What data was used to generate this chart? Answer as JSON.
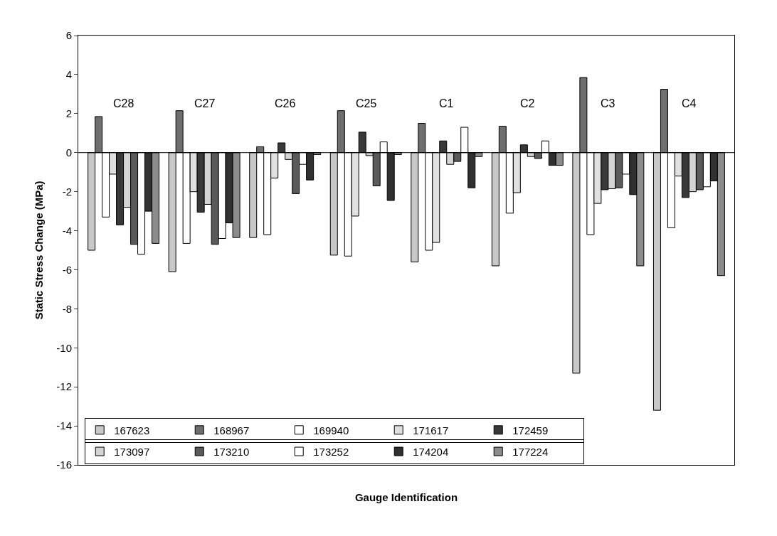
{
  "chart_data": {
    "type": "bar",
    "xlabel": "Gauge Identification",
    "ylabel": "Static Stress Change (MPa)",
    "categories": [
      "C28",
      "C27",
      "C26",
      "C25",
      "C1",
      "C2",
      "C3",
      "C4"
    ],
    "ylim": [
      -16,
      6
    ],
    "yticks": [
      -16,
      -14,
      -12,
      -10,
      -8,
      -6,
      -4,
      -2,
      0,
      2,
      4,
      6
    ],
    "grid": false,
    "legend": "bottom left",
    "tick_labels": "y",
    "ref_lines": [
      {
        "axis": "y",
        "value": 0,
        "color": "#000000"
      }
    ],
    "series": [
      {
        "name": "167623",
        "color": "#c8c8c8",
        "values": [
          -5.0,
          -6.1,
          -4.35,
          -5.25,
          -5.6,
          -5.8,
          -11.3,
          -13.2
        ]
      },
      {
        "name": "168967",
        "color": "#6e6e6e",
        "values": [
          1.85,
          2.15,
          0.3,
          2.15,
          1.5,
          1.35,
          3.85,
          3.25
        ]
      },
      {
        "name": "169940",
        "color": "#ffffff",
        "values": [
          -3.3,
          -4.65,
          -4.2,
          -5.3,
          -5.0,
          -3.1,
          -4.2,
          -3.85
        ]
      },
      {
        "name": "171617",
        "color": "#e0e0e0",
        "values": [
          -1.1,
          -2.0,
          -1.3,
          -3.25,
          -4.6,
          -2.05,
          -2.6,
          -1.2
        ]
      },
      {
        "name": "172459",
        "color": "#383838",
        "values": [
          -3.7,
          -3.05,
          0.5,
          1.05,
          0.6,
          0.4,
          -1.9,
          -2.3
        ]
      },
      {
        "name": "173097",
        "color": "#d4d4d4",
        "values": [
          -2.8,
          -2.65,
          -0.35,
          -0.15,
          -0.6,
          -0.2,
          -1.85,
          -2.0
        ]
      },
      {
        "name": "173210",
        "color": "#5a5a5a",
        "values": [
          -4.7,
          -4.7,
          -2.1,
          -1.7,
          -0.45,
          -0.3,
          -1.8,
          -1.9
        ]
      },
      {
        "name": "173252",
        "color": "#ffffff",
        "values": [
          -5.2,
          -4.4,
          -0.6,
          0.55,
          1.3,
          0.6,
          -1.1,
          -1.75
        ]
      },
      {
        "name": "174204",
        "color": "#303030",
        "values": [
          -3.0,
          -3.6,
          -1.4,
          -2.45,
          -1.8,
          -0.65,
          -2.15,
          -1.45
        ]
      },
      {
        "name": "177224",
        "color": "#8c8c8c",
        "values": [
          -4.65,
          -4.35,
          -0.1,
          -0.1,
          -0.2,
          -0.65,
          -5.8,
          -6.3
        ]
      }
    ]
  }
}
